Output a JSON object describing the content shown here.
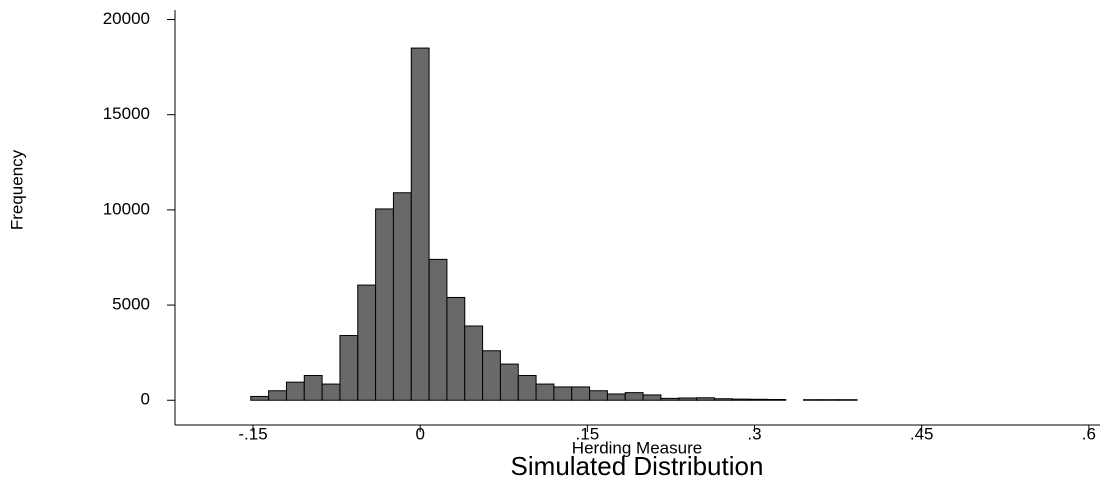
{
  "chart_data": {
    "type": "histogram",
    "title": "Simulated Distribution",
    "x_label": "Herding Measure",
    "y_label": "Frequency",
    "bins": [
      -0.152,
      -0.136,
      -0.12,
      -0.104,
      -0.088,
      -0.072,
      -0.056,
      -0.04,
      -0.024,
      -0.008,
      0.008,
      0.024,
      0.04,
      0.056,
      0.072,
      0.088,
      0.104,
      0.12,
      0.136,
      0.152,
      0.168,
      0.184,
      0.2,
      0.216,
      0.232,
      0.248,
      0.264,
      0.28,
      0.296,
      0.312,
      0.328,
      0.344,
      0.36,
      0.376,
      0.392
    ],
    "values": [
      200,
      500,
      950,
      1300,
      850,
      3400,
      6050,
      10050,
      10900,
      18500,
      7400,
      5400,
      3900,
      2600,
      1900,
      1300,
      850,
      700,
      700,
      500,
      330,
      400,
      280,
      100,
      120,
      130,
      80,
      60,
      50,
      40,
      0,
      30,
      30,
      30
    ],
    "color": "#696969",
    "xlim": [
      -0.22,
      0.61
    ],
    "xticks": [
      {
        "value": -0.15,
        "label": "-.15"
      },
      0,
      {
        "value": 0.15,
        "label": ".15"
      },
      {
        "value": 0.3,
        "label": ".3"
      },
      {
        "value": 0.45,
        "label": ".45"
      },
      {
        "value": 0.6,
        "label": ".6"
      }
    ],
    "ylim": [
      -1300,
      20500
    ],
    "yticks": [
      0,
      5000,
      10000,
      15000,
      20000
    ]
  }
}
